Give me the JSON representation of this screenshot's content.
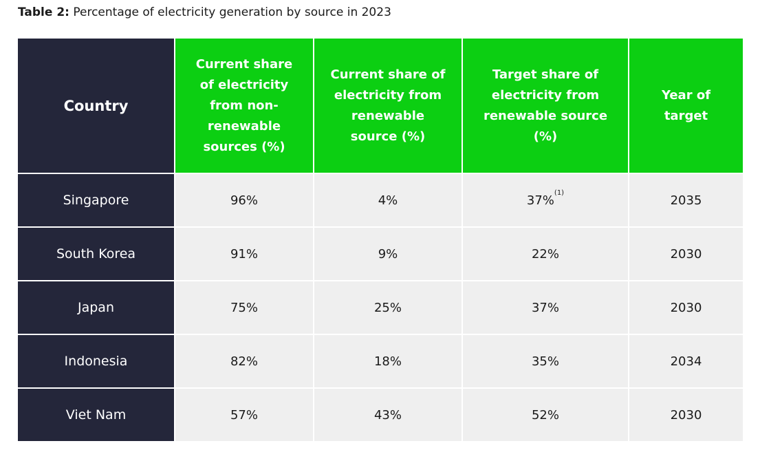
{
  "caption": {
    "label": "Table 2:",
    "text": " Percentage of electricity generation by source in 2023"
  },
  "colors": {
    "header_dark": "#24263a",
    "header_green": "#0ccf12",
    "cell_bg": "#efefef"
  },
  "headers": [
    "Country",
    "Current share of electricity from non-renewable sources (%)",
    "Current share of electricity from renewable source (%)",
    "Target share of electricity from renewable source (%)",
    "Year of target"
  ],
  "rows": [
    {
      "country": "Singapore",
      "non_renewable": "96%",
      "renewable": "4%",
      "target": "37%",
      "target_note": "(1)",
      "year": "2035"
    },
    {
      "country": "South Korea",
      "non_renewable": "91%",
      "renewable": "9%",
      "target": "22%",
      "year": "2030"
    },
    {
      "country": "Japan",
      "non_renewable": "75%",
      "renewable": "25%",
      "target": "37%",
      "year": "2030"
    },
    {
      "country": "Indonesia",
      "non_renewable": "82%",
      "renewable": "18%",
      "target": "35%",
      "year": "2034"
    },
    {
      "country": "Viet Nam",
      "non_renewable": "57%",
      "renewable": "43%",
      "target": "52%",
      "year": "2030"
    }
  ]
}
